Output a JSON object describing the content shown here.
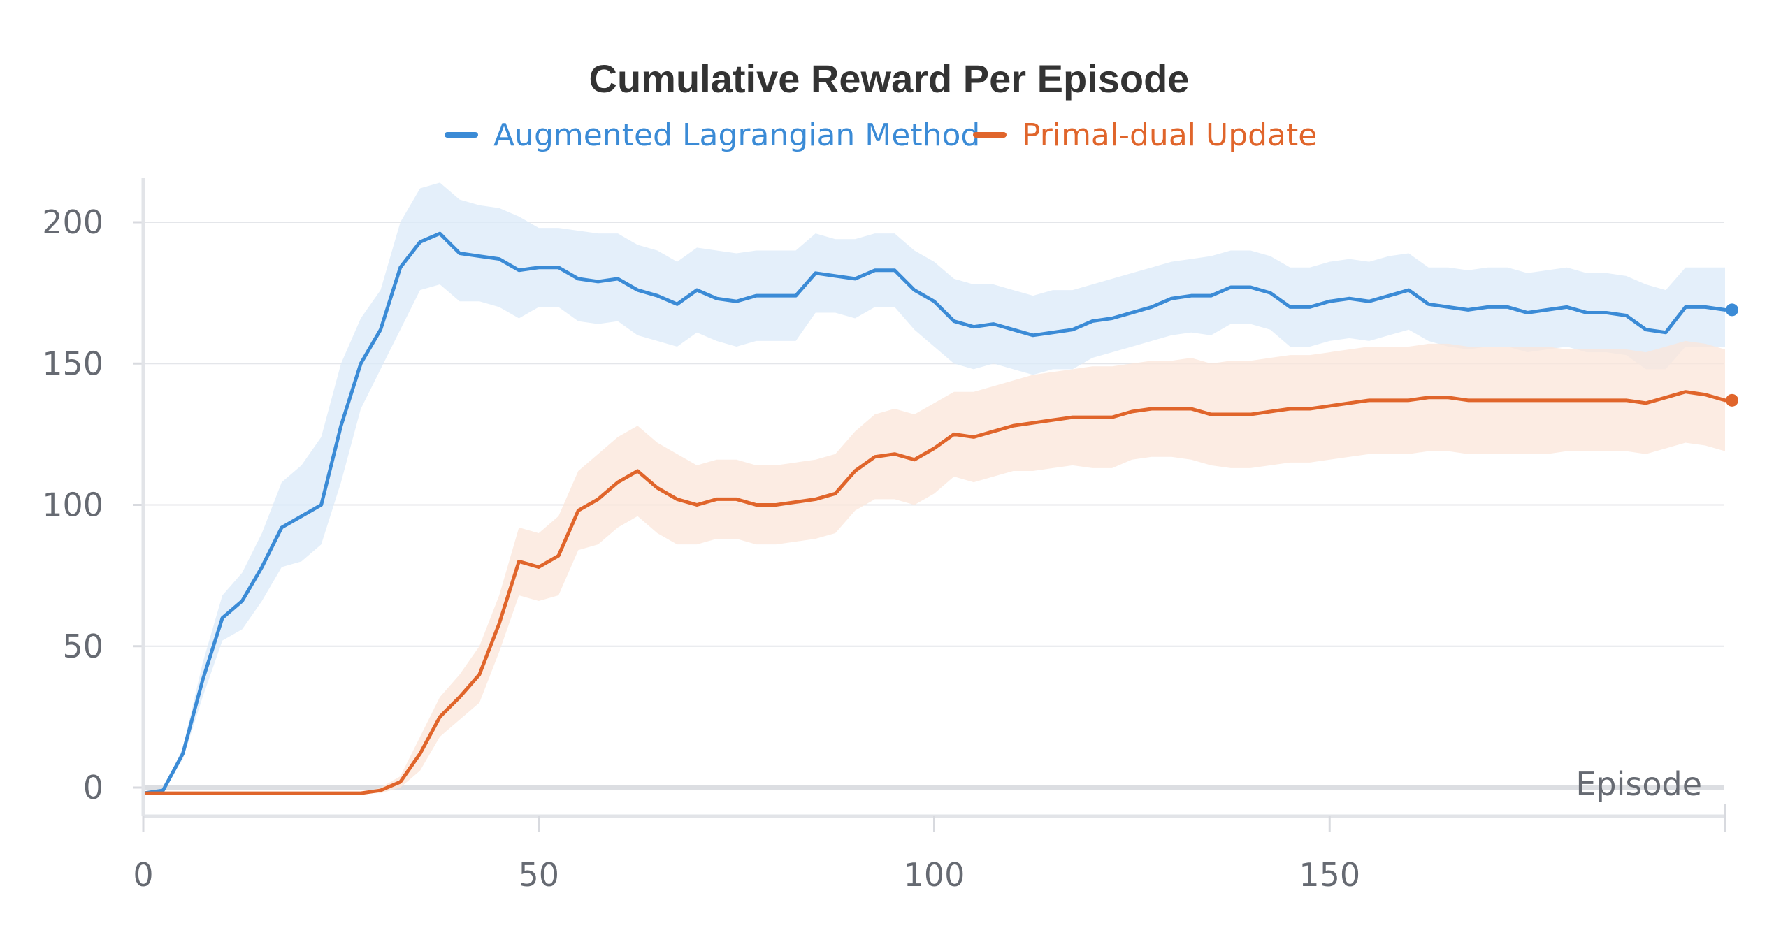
{
  "chart_data": {
    "type": "line",
    "title": "Cumulative Reward Per Episode",
    "xlabel": "Episode",
    "ylabel": "",
    "xlim": [
      0,
      200
    ],
    "ylim": [
      -15,
      215
    ],
    "xticks": [
      0,
      50,
      100,
      150
    ],
    "yticks": [
      0,
      50,
      100,
      150,
      200
    ],
    "grid": true,
    "legend_position": "top-center",
    "x": [
      0,
      2.5,
      5,
      7.5,
      10,
      12.5,
      15,
      17.5,
      20,
      22.5,
      25,
      27.5,
      30,
      32.5,
      35,
      37.5,
      40,
      42.5,
      45,
      47.5,
      50,
      52.5,
      55,
      57.5,
      60,
      62.5,
      65,
      67.5,
      70,
      72.5,
      75,
      77.5,
      80,
      82.5,
      85,
      87.5,
      90,
      92.5,
      95,
      97.5,
      100,
      102.5,
      105,
      107.5,
      110,
      112.5,
      115,
      117.5,
      120,
      122.5,
      125,
      127.5,
      130,
      132.5,
      135,
      137.5,
      140,
      142.5,
      145,
      147.5,
      150,
      152.5,
      155,
      157.5,
      160,
      162.5,
      165,
      167.5,
      170,
      172.5,
      175,
      177.5,
      180,
      182.5,
      185,
      187.5,
      190,
      192.5,
      195,
      197.5,
      200
    ],
    "series": [
      {
        "name": "Augmented Lagrangian Method",
        "color": "#3b8bd6",
        "band_color": "#dbe9f8",
        "values": [
          -2,
          -1,
          12,
          38,
          60,
          66,
          78,
          92,
          96,
          100,
          128,
          150,
          162,
          184,
          193,
          196,
          189,
          188,
          187,
          183,
          184,
          184,
          180,
          179,
          180,
          176,
          174,
          171,
          176,
          173,
          172,
          174,
          174,
          174,
          182,
          181,
          180,
          183,
          183,
          176,
          172,
          165,
          163,
          164,
          162,
          160,
          161,
          162,
          165,
          166,
          168,
          170,
          173,
          174,
          174,
          177,
          177,
          175,
          170,
          170,
          172,
          173,
          172,
          174,
          176,
          171,
          170,
          169,
          170,
          170,
          168,
          169,
          170,
          168,
          168,
          167,
          162,
          161,
          170,
          170,
          169
        ],
        "upper": [
          -2,
          -1,
          14,
          44,
          68,
          76,
          90,
          108,
          114,
          124,
          150,
          166,
          176,
          200,
          212,
          214,
          208,
          206,
          205,
          202,
          198,
          198,
          197,
          196,
          196,
          192,
          190,
          186,
          191,
          190,
          189,
          190,
          190,
          190,
          196,
          194,
          194,
          196,
          196,
          190,
          186,
          180,
          178,
          178,
          176,
          174,
          176,
          176,
          178,
          180,
          182,
          184,
          186,
          187,
          188,
          190,
          190,
          188,
          184,
          184,
          186,
          187,
          186,
          188,
          189,
          184,
          184,
          183,
          184,
          184,
          182,
          183,
          184,
          182,
          182,
          181,
          178,
          176,
          184,
          184,
          184
        ],
        "lower": [
          -2,
          -1,
          10,
          32,
          52,
          56,
          66,
          78,
          80,
          86,
          108,
          134,
          148,
          162,
          176,
          178,
          172,
          172,
          170,
          166,
          170,
          170,
          165,
          164,
          165,
          160,
          158,
          156,
          161,
          158,
          156,
          158,
          158,
          158,
          168,
          168,
          166,
          170,
          170,
          162,
          156,
          150,
          148,
          150,
          148,
          146,
          148,
          148,
          152,
          154,
          156,
          158,
          160,
          161,
          160,
          164,
          164,
          162,
          156,
          156,
          158,
          159,
          158,
          160,
          162,
          158,
          156,
          155,
          156,
          156,
          154,
          155,
          156,
          154,
          154,
          153,
          148,
          148,
          156,
          156,
          156
        ],
        "end_marker": 169
      },
      {
        "name": "Primal-dual Update",
        "color": "#e0652b",
        "band_color": "#fbe6da",
        "values": [
          -2,
          -2,
          -2,
          -2,
          -2,
          -2,
          -2,
          -2,
          -2,
          -2,
          -2,
          -2,
          -1,
          2,
          12,
          25,
          32,
          40,
          58,
          80,
          78,
          82,
          98,
          102,
          108,
          112,
          106,
          102,
          100,
          102,
          102,
          100,
          100,
          101,
          102,
          104,
          112,
          117,
          118,
          116,
          120,
          125,
          124,
          126,
          128,
          129,
          130,
          131,
          131,
          131,
          133,
          134,
          134,
          134,
          132,
          132,
          132,
          133,
          134,
          134,
          135,
          136,
          137,
          137,
          137,
          138,
          138,
          137,
          137,
          137,
          137,
          137,
          137,
          137,
          137,
          137,
          136,
          138,
          140,
          139,
          137
        ],
        "upper": [
          -2,
          -2,
          -2,
          -2,
          -2,
          -2,
          -2,
          -2,
          -2,
          -2,
          -2,
          -2,
          0,
          4,
          18,
          32,
          40,
          50,
          68,
          92,
          90,
          96,
          112,
          118,
          124,
          128,
          122,
          118,
          114,
          116,
          116,
          114,
          114,
          115,
          116,
          118,
          126,
          132,
          134,
          132,
          136,
          140,
          140,
          142,
          144,
          146,
          147,
          148,
          149,
          149,
          150,
          151,
          151,
          152,
          150,
          151,
          151,
          152,
          153,
          153,
          154,
          155,
          156,
          156,
          156,
          157,
          157,
          156,
          156,
          156,
          156,
          156,
          155,
          155,
          155,
          155,
          154,
          156,
          158,
          157,
          155
        ],
        "lower": [
          -2,
          -2,
          -2,
          -2,
          -2,
          -2,
          -2,
          -2,
          -2,
          -2,
          -2,
          -2,
          -2,
          0,
          6,
          18,
          24,
          30,
          48,
          68,
          66,
          68,
          84,
          86,
          92,
          96,
          90,
          86,
          86,
          88,
          88,
          86,
          86,
          87,
          88,
          90,
          98,
          102,
          102,
          100,
          104,
          110,
          108,
          110,
          112,
          112,
          113,
          114,
          113,
          113,
          116,
          117,
          117,
          116,
          114,
          113,
          113,
          114,
          115,
          115,
          116,
          117,
          118,
          118,
          118,
          119,
          119,
          118,
          118,
          118,
          118,
          118,
          119,
          119,
          119,
          119,
          118,
          120,
          122,
          121,
          119
        ],
        "end_marker": 137
      }
    ]
  }
}
